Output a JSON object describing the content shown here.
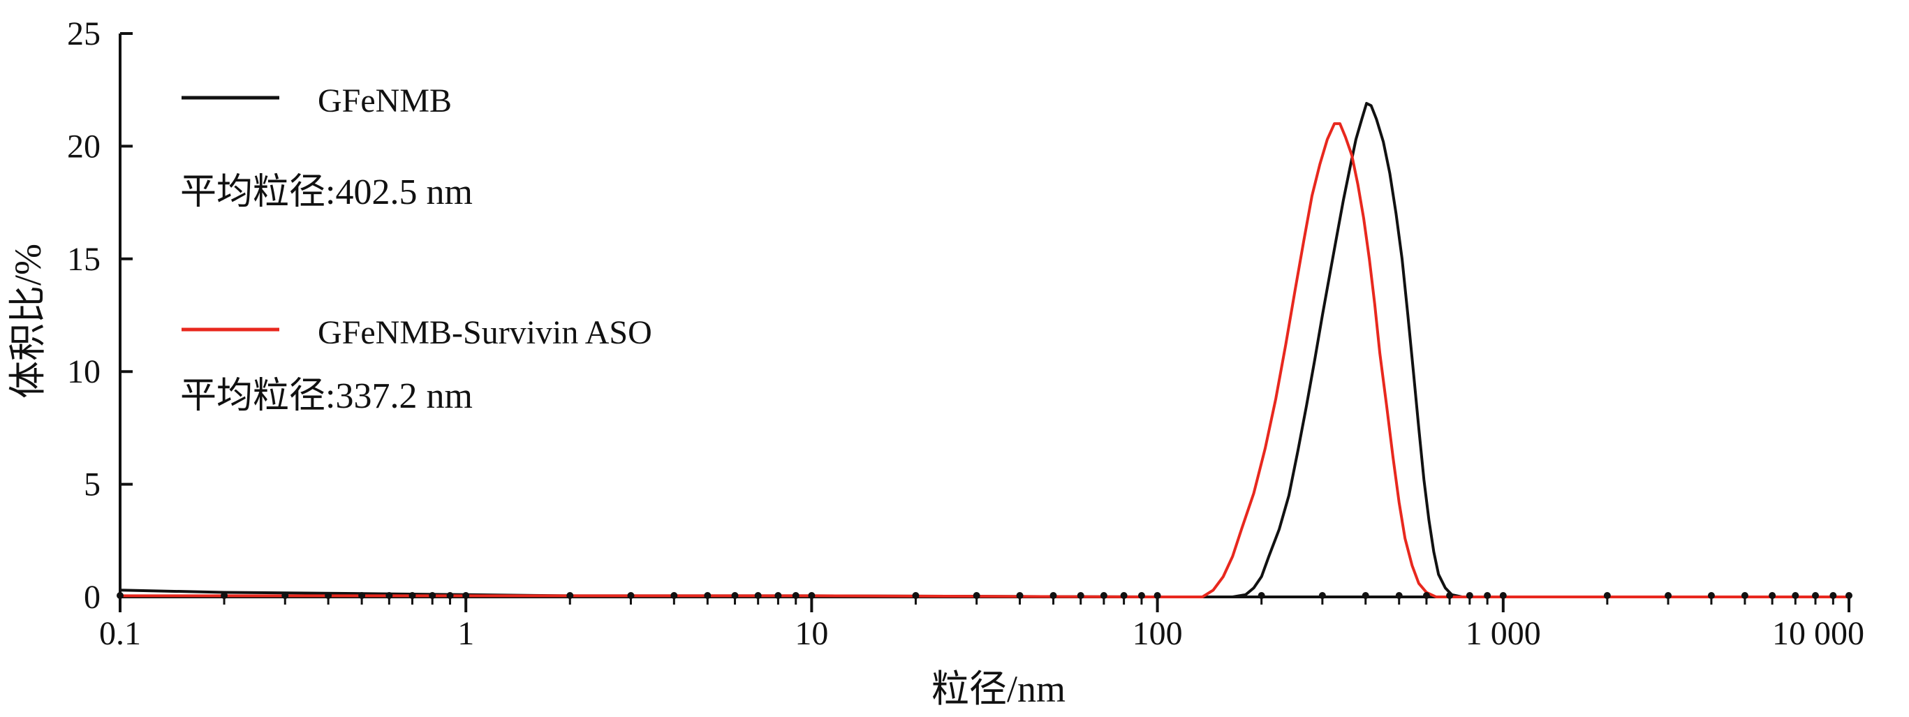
{
  "chart_data": {
    "type": "line",
    "x_scale": "log",
    "xlim": [
      0.1,
      10000
    ],
    "ylim": [
      0,
      25
    ],
    "grid": false,
    "xlabel": "粒径/nm",
    "ylabel": "体积比/%",
    "x_ticks": [
      0.1,
      1,
      10,
      100,
      1000,
      10000
    ],
    "x_tick_labels": [
      "0.1",
      "1",
      "10",
      "100",
      "1 000",
      "10 000"
    ],
    "y_ticks": [
      0,
      5,
      10,
      15,
      20,
      25
    ],
    "y_tick_labels": [
      "0",
      "5",
      "10",
      "15",
      "20",
      "25"
    ],
    "legend_placement": "top-left",
    "series": [
      {
        "name": "GFeNMB",
        "color": "#111111",
        "note": "平均粒径:402.5 nm",
        "points": [
          [
            0.1,
            0.3
          ],
          [
            0.2,
            0.2
          ],
          [
            0.5,
            0.15
          ],
          [
            1,
            0.1
          ],
          [
            2,
            0.05
          ],
          [
            10,
            0.05
          ],
          [
            100,
            0.0
          ],
          [
            165,
            0.0
          ],
          [
            180,
            0.1
          ],
          [
            190,
            0.4
          ],
          [
            200,
            0.9
          ],
          [
            210,
            1.8
          ],
          [
            225,
            3.0
          ],
          [
            240,
            4.5
          ],
          [
            255,
            6.5
          ],
          [
            270,
            8.5
          ],
          [
            285,
            10.5
          ],
          [
            300,
            12.5
          ],
          [
            315,
            14.3
          ],
          [
            330,
            16.0
          ],
          [
            345,
            17.6
          ],
          [
            360,
            19.0
          ],
          [
            375,
            20.3
          ],
          [
            390,
            21.2
          ],
          [
            402.5,
            21.9
          ],
          [
            415,
            21.8
          ],
          [
            430,
            21.2
          ],
          [
            450,
            20.2
          ],
          [
            470,
            18.8
          ],
          [
            490,
            17.0
          ],
          [
            510,
            15.0
          ],
          [
            530,
            12.5
          ],
          [
            550,
            10.0
          ],
          [
            570,
            7.5
          ],
          [
            590,
            5.2
          ],
          [
            610,
            3.4
          ],
          [
            630,
            2.0
          ],
          [
            650,
            1.0
          ],
          [
            680,
            0.4
          ],
          [
            710,
            0.1
          ],
          [
            760,
            0.0
          ],
          [
            1000,
            0.0
          ],
          [
            10000,
            0.0
          ]
        ]
      },
      {
        "name": "GFeNMB-Survivin ASO",
        "color": "#e8281e",
        "note": "平均粒径:337.2 nm",
        "points": [
          [
            0.1,
            0.05
          ],
          [
            1,
            0.05
          ],
          [
            10,
            0.05
          ],
          [
            100,
            0.0
          ],
          [
            135,
            0.0
          ],
          [
            145,
            0.3
          ],
          [
            155,
            0.9
          ],
          [
            165,
            1.8
          ],
          [
            175,
            3.0
          ],
          [
            190,
            4.6
          ],
          [
            205,
            6.6
          ],
          [
            220,
            8.8
          ],
          [
            235,
            11.2
          ],
          [
            250,
            13.6
          ],
          [
            265,
            15.8
          ],
          [
            280,
            17.8
          ],
          [
            295,
            19.2
          ],
          [
            310,
            20.3
          ],
          [
            325,
            21.0
          ],
          [
            337.2,
            21.0
          ],
          [
            350,
            20.4
          ],
          [
            365,
            19.6
          ],
          [
            380,
            18.3
          ],
          [
            395,
            16.8
          ],
          [
            410,
            15.0
          ],
          [
            425,
            13.0
          ],
          [
            440,
            10.8
          ],
          [
            460,
            8.5
          ],
          [
            480,
            6.2
          ],
          [
            500,
            4.2
          ],
          [
            520,
            2.6
          ],
          [
            545,
            1.4
          ],
          [
            570,
            0.6
          ],
          [
            600,
            0.2
          ],
          [
            640,
            0.0
          ],
          [
            1000,
            0.0
          ],
          [
            10000,
            0.0
          ]
        ]
      }
    ]
  }
}
